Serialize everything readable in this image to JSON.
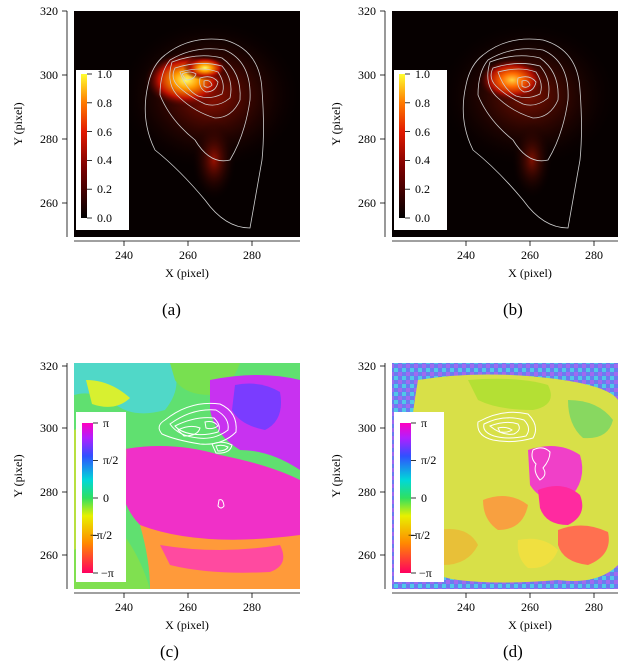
{
  "figure": {
    "panels": [
      {
        "id": "a",
        "caption": "(a)",
        "kind": "intensity",
        "xlabel": "X (pixel)",
        "ylabel": "Y (pixel)",
        "xticks": [
          "240",
          "260",
          "280"
        ],
        "yticks": [
          "320",
          "300",
          "280",
          "260"
        ],
        "colorbar": {
          "labels": [
            "1.0",
            "0.8",
            "0.6",
            "0.4",
            "0.2",
            "0.0"
          ]
        }
      },
      {
        "id": "b",
        "caption": "(b)",
        "kind": "intensity",
        "xlabel": "X (pixel)",
        "ylabel": "Y (pixel)",
        "xticks": [
          "240",
          "260",
          "280"
        ],
        "yticks": [
          "320",
          "300",
          "280",
          "260"
        ],
        "colorbar": {
          "labels": [
            "1.0",
            "0.8",
            "0.6",
            "0.4",
            "0.2",
            "0.0"
          ]
        }
      },
      {
        "id": "c",
        "caption": "(c)",
        "kind": "phase",
        "xlabel": "X (pixel)",
        "ylabel": "Y (pixel)",
        "xticks": [
          "240",
          "260",
          "280"
        ],
        "yticks": [
          "320",
          "300",
          "280",
          "260"
        ],
        "colorbar": {
          "labels": [
            "π",
            "π/2",
            "0",
            "−π/2",
            "−π"
          ]
        }
      },
      {
        "id": "d",
        "caption": "(d)",
        "kind": "phase",
        "xlabel": "X (pixel)",
        "ylabel": "Y (pixel)",
        "xticks": [
          "240",
          "260",
          "280"
        ],
        "yticks": [
          "320",
          "300",
          "280",
          "260"
        ],
        "colorbar": {
          "labels": [
            "π",
            "π/2",
            "0",
            "−π/2",
            "−π"
          ]
        }
      }
    ],
    "axes": {
      "xlim": [
        225,
        295
      ],
      "ylim": [
        250,
        322
      ]
    }
  }
}
